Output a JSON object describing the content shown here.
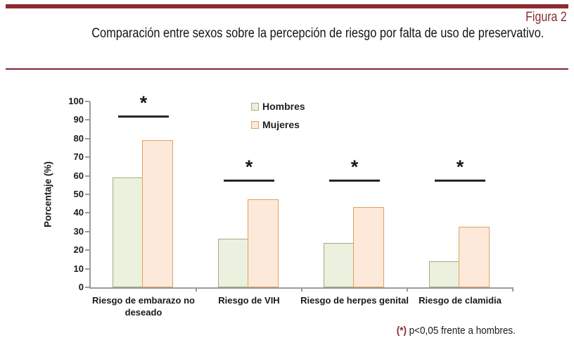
{
  "header": {
    "figure_label": "Figura 2",
    "title": "Comparación entre sexos sobre la percepción de riesgo por falta de uso de preservativo."
  },
  "footnote": {
    "marker": "(*)",
    "text": "p<0,05 frente a hombres."
  },
  "colors": {
    "accent_maroon": "#8b2b32",
    "axis_grey": "#9b9b9b",
    "significance_line": "#262626"
  },
  "chart_data": {
    "type": "bar",
    "title": "",
    "xlabel": "",
    "ylabel": "Porcentaje (%)",
    "ylim": [
      0,
      100
    ],
    "yticks": [
      0,
      10,
      20,
      30,
      40,
      50,
      60,
      70,
      80,
      90,
      100
    ],
    "grid": false,
    "legend_position": "top-center",
    "categories": [
      "Riesgo de embarazo no deseado",
      "Riesgo de VIH",
      "Riesgo de herpes genital",
      "Riesgo de clamidia"
    ],
    "series": [
      {
        "name": "Hombres",
        "values": [
          59,
          26,
          24,
          14
        ],
        "fill": "#ebf1de",
        "border": "#a4ad7d"
      },
      {
        "name": "Mujeres",
        "values": [
          79,
          47.5,
          43,
          32.5
        ],
        "fill": "#fde9d9",
        "border": "#e1a163"
      }
    ],
    "significance_markers": [
      {
        "category_index": 0,
        "symbol": "*",
        "line_height_pct": 92,
        "meaning": "p<0,05 frente a hombres"
      },
      {
        "category_index": 1,
        "symbol": "*",
        "line_height_pct": 57.5,
        "meaning": "p<0,05 frente a hombres"
      },
      {
        "category_index": 2,
        "symbol": "*",
        "line_height_pct": 57.5,
        "meaning": "p<0,05 frente a hombres"
      },
      {
        "category_index": 3,
        "symbol": "*",
        "line_height_pct": 57.5,
        "meaning": "p<0,05 frente a hombres"
      }
    ]
  }
}
